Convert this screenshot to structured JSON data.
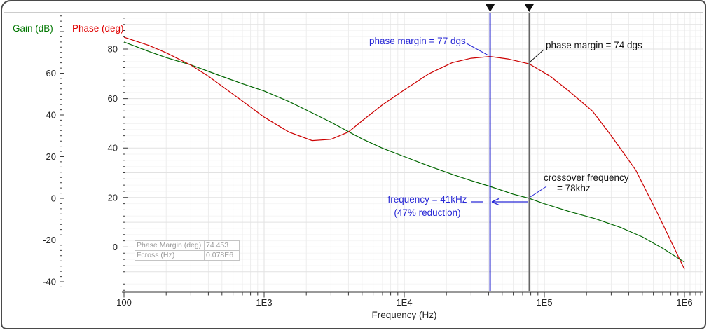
{
  "titles": {
    "gain_axis": "Gain (dB)",
    "phase_axis": "Phase (deg)",
    "freq_axis": "Frequency (Hz)"
  },
  "colors": {
    "gain_curve": "#006600",
    "phase_curve": "#cc0000",
    "gain_title": "#007700",
    "phase_title": "#e00000",
    "annotation_blue": "#2929d6",
    "annotation_black": "#111111",
    "cursor_blue": "#0000c8",
    "cursor_gray": "#666666",
    "axis": "#3a3a3a",
    "grid_minor_h": "#f6f6f6",
    "grid_minor_v": "#ededed",
    "grid_major": "#e2e2e2"
  },
  "annotations": {
    "phase_margin_77": "phase margin = 77 dgs",
    "phase_margin_74": "phase margin = 74 dgs",
    "crossover_line1": "crossover frequency",
    "crossover_line2": "= 78khz",
    "freq_line1": "frequency = 41kHz",
    "freq_line2": "(47% reduction)"
  },
  "readout": {
    "row1_label": "Phase Margin (deg)",
    "row1_value": "74.453",
    "row2_label": "Fcross (Hz)",
    "row2_value": "0.078E6"
  },
  "chart_data": {
    "type": "line",
    "title": "",
    "xlabel": "Frequency (Hz)",
    "x_scale": "log",
    "x_range_hz": [
      100,
      1000000
    ],
    "x_tick_labels": [
      "100",
      "1E3",
      "1E4",
      "1E5",
      "1E6"
    ],
    "grid": true,
    "legend_position": "none",
    "gain_axis": {
      "label": "Gain (dB)",
      "ticks": [
        60,
        40,
        20,
        0,
        -20,
        -40
      ],
      "range": [
        -45,
        88
      ]
    },
    "phase_axis": {
      "label": "Phase (deg)",
      "ticks": [
        80,
        60,
        40,
        20,
        0
      ],
      "range": [
        -18,
        95
      ]
    },
    "series": [
      {
        "name": "Gain (dB)",
        "axis": "gain",
        "color": "#006600",
        "points": [
          [
            100,
            75
          ],
          [
            150,
            70.5
          ],
          [
            200,
            67.5
          ],
          [
            300,
            64
          ],
          [
            500,
            58.5
          ],
          [
            700,
            55
          ],
          [
            1000,
            51.5
          ],
          [
            1500,
            46.5
          ],
          [
            2200,
            41
          ],
          [
            3000,
            36.5
          ],
          [
            4000,
            32
          ],
          [
            5000,
            28.5
          ],
          [
            7000,
            24
          ],
          [
            10000,
            20
          ],
          [
            15000,
            15.5
          ],
          [
            22000,
            11.5
          ],
          [
            30000,
            8.5
          ],
          [
            41000,
            5.7
          ],
          [
            60000,
            2
          ],
          [
            78000,
            0
          ],
          [
            100000,
            -2.6
          ],
          [
            150000,
            -6.3
          ],
          [
            230000,
            -9.7
          ],
          [
            350000,
            -14
          ],
          [
            500000,
            -18.5
          ],
          [
            700000,
            -24
          ],
          [
            1000000,
            -30.6
          ]
        ]
      },
      {
        "name": "Phase (deg)",
        "axis": "phase",
        "color": "#cc0000",
        "points": [
          [
            100,
            84.8
          ],
          [
            150,
            81.5
          ],
          [
            200,
            78.5
          ],
          [
            300,
            73.5
          ],
          [
            400,
            69
          ],
          [
            500,
            65
          ],
          [
            700,
            59
          ],
          [
            1000,
            52.5
          ],
          [
            1500,
            46.5
          ],
          [
            2200,
            43
          ],
          [
            3000,
            43.5
          ],
          [
            4000,
            46.5
          ],
          [
            5000,
            51
          ],
          [
            7000,
            57.5
          ],
          [
            10000,
            63.5
          ],
          [
            15000,
            70
          ],
          [
            22000,
            74.5
          ],
          [
            30000,
            76.3
          ],
          [
            41000,
            77
          ],
          [
            55000,
            76
          ],
          [
            78000,
            74
          ],
          [
            110000,
            69
          ],
          [
            150000,
            63
          ],
          [
            220000,
            55
          ],
          [
            300000,
            45
          ],
          [
            450000,
            31
          ],
          [
            650000,
            13
          ],
          [
            1000000,
            -9
          ]
        ]
      }
    ],
    "cursors": [
      {
        "name": "cursor-41khz",
        "freq_hz": 41000,
        "color": "#0000c8"
      },
      {
        "name": "cursor-78khz",
        "freq_hz": 78000,
        "color": "#666666"
      }
    ],
    "measurements": {
      "phase_margin_deg": 74.453,
      "fcross_hz": "0.078E6",
      "peak_phase_margin_deg": 77,
      "reduced_freq_hz": 41000,
      "crossover_freq_hz": 78000,
      "reduction_pct": 47
    }
  }
}
